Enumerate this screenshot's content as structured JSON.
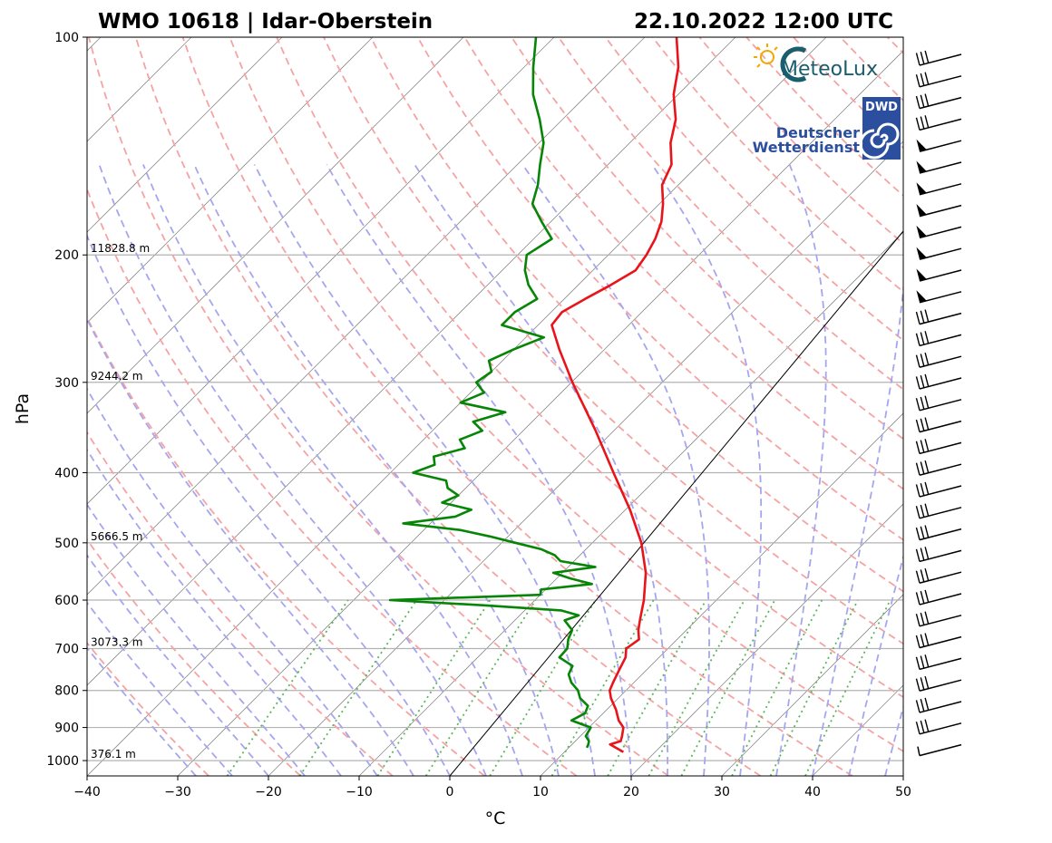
{
  "title_left": "WMO 10618 | Idar-Oberstein",
  "title_right": "22.10.2022 12:00 UTC",
  "logos": {
    "meteolux": "MeteoLux",
    "dwd_badge": "DWD",
    "dwd_line1": "Deutscher",
    "dwd_line2": "Wetterdienst"
  },
  "colors": {
    "temperature": "#e8141a",
    "dewpoint": "#068506",
    "dry_adiabat": "#f5a3a3",
    "moist_adiabat": "#a6a6ee",
    "mixing_ratio": "#5bb55b",
    "isotherm": "#8c8c8c",
    "isobar": "#b3b3b3",
    "dwd_blue": "#2b4f9e",
    "meteolux_teal": "#1a5e6e",
    "sun": "#f2a800"
  },
  "chart_data": {
    "type": "line",
    "subtype": "skew-T log-P sounding",
    "xlabel": "°C",
    "ylabel": "hPa",
    "xlim": [
      -40,
      50
    ],
    "ylim": [
      1050,
      100
    ],
    "x_ticks": [
      -40,
      -30,
      -20,
      -10,
      0,
      10,
      20,
      30,
      40,
      50
    ],
    "x_tick_labels": [
      "−40",
      "−30",
      "−20",
      "−10",
      "0",
      "10",
      "20",
      "30",
      "40",
      "50"
    ],
    "y_ticks": [
      100,
      200,
      300,
      400,
      500,
      600,
      700,
      800,
      900,
      1000
    ],
    "y_tick_labels": [
      "100",
      "200",
      "300",
      "400",
      "500",
      "600",
      "700",
      "800",
      "900",
      "1000"
    ],
    "height_labels": [
      {
        "p": 1000,
        "text": "376.1 m"
      },
      {
        "p": 700,
        "text": "3073.3 m"
      },
      {
        "p": 500,
        "text": "5666.5 m"
      },
      {
        "p": 300,
        "text": "9244.2 m"
      },
      {
        "p": 200,
        "text": "11828.8 m"
      }
    ],
    "series": [
      {
        "name": "temperature",
        "p": [
          973,
          960,
          950,
          940,
          925,
          900,
          880,
          850,
          820,
          800,
          780,
          750,
          720,
          700,
          680,
          660,
          640,
          600,
          550,
          500,
          450,
          400,
          350,
          300,
          270,
          250,
          240,
          230,
          220,
          210,
          200,
          190,
          180,
          170,
          160,
          150,
          140,
          130,
          120,
          110,
          100
        ],
        "t": [
          16.5,
          15.2,
          14.2,
          15.0,
          14.6,
          13.8,
          12.5,
          11.0,
          9.2,
          8.2,
          7.7,
          7.0,
          6.3,
          5.4,
          5.8,
          4.7,
          3.8,
          2.0,
          -0.8,
          -4.6,
          -9.5,
          -15.4,
          -22.0,
          -29.9,
          -35.0,
          -38.5,
          -38.8,
          -37.7,
          -36.4,
          -35.3,
          -35.8,
          -36.6,
          -37.8,
          -39.6,
          -41.8,
          -43.0,
          -45.5,
          -47.5,
          -50.5,
          -53.0,
          -56.5
        ]
      },
      {
        "name": "dewpoint",
        "p": [
          960,
          950,
          940,
          925,
          900,
          880,
          860,
          840,
          820,
          800,
          780,
          760,
          740,
          720,
          700,
          680,
          660,
          640,
          630,
          620,
          610,
          600,
          590,
          580,
          570,
          560,
          550,
          540,
          530,
          520,
          510,
          500,
          490,
          480,
          470,
          460,
          450,
          440,
          430,
          420,
          410,
          400,
          390,
          380,
          370,
          360,
          350,
          340,
          330,
          320,
          310,
          300,
          290,
          280,
          270,
          260,
          250,
          240,
          230,
          220,
          210,
          200,
          190,
          180,
          170,
          160,
          150,
          140,
          130,
          120,
          110,
          100
        ],
        "td": [
          12.0,
          11.8,
          11.5,
          10.6,
          10.2,
          7.3,
          8.0,
          7.5,
          5.8,
          4.7,
          3.1,
          1.9,
          1.4,
          -1.0,
          -1.1,
          -2.0,
          -2.6,
          -4.5,
          -3.5,
          -6.0,
          -15.0,
          -26.0,
          -10.0,
          -10.5,
          -5.5,
          -8.5,
          -11.0,
          -7.0,
          -11.5,
          -12.8,
          -15.0,
          -18.5,
          -22.0,
          -26.0,
          -33.0,
          -28.0,
          -27.0,
          -31.0,
          -30.0,
          -32.0,
          -33.0,
          -37.5,
          -36.0,
          -37.0,
          -34.5,
          -36.0,
          -34.5,
          -36.5,
          -34.0,
          -40.0,
          -38.5,
          -40.5,
          -40.0,
          -41.5,
          -40.0,
          -38.0,
          -44.0,
          -44.0,
          -43.0,
          -45.5,
          -47.5,
          -49.0,
          -48.0,
          -51.0,
          -54.0,
          -55.5,
          -57.5,
          -59.5,
          -62.5,
          -66.0,
          -69.0,
          -72.0
        ]
      }
    ]
  }
}
